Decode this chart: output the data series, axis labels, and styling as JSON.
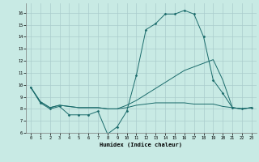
{
  "title": "",
  "xlabel": "Humidex (Indice chaleur)",
  "background_color": "#c8eae4",
  "grid_color": "#aacccc",
  "line_color": "#1a6b6b",
  "xlim": [
    -0.5,
    23.5
  ],
  "ylim": [
    6,
    16.8
  ],
  "yticks": [
    6,
    7,
    8,
    9,
    10,
    11,
    12,
    13,
    14,
    15,
    16
  ],
  "xticks": [
    0,
    1,
    2,
    3,
    4,
    5,
    6,
    7,
    8,
    9,
    10,
    11,
    12,
    13,
    14,
    15,
    16,
    17,
    18,
    19,
    20,
    21,
    22,
    23
  ],
  "series1_x": [
    0,
    1,
    2,
    3,
    4,
    5,
    6,
    7,
    8,
    9,
    10,
    11,
    12,
    13,
    14,
    15,
    16,
    17,
    18,
    19,
    20,
    21,
    22,
    23
  ],
  "series1_y": [
    9.8,
    8.5,
    8.0,
    8.2,
    7.5,
    7.5,
    7.5,
    7.8,
    5.9,
    6.5,
    7.8,
    10.8,
    14.6,
    15.1,
    15.9,
    15.9,
    16.2,
    15.9,
    14.0,
    10.4,
    9.3,
    8.1,
    8.0,
    8.1
  ],
  "series2_x": [
    0,
    1,
    2,
    3,
    4,
    5,
    6,
    7,
    8,
    9,
    10,
    11,
    12,
    13,
    14,
    15,
    16,
    17,
    18,
    19,
    20,
    21,
    22,
    23
  ],
  "series2_y": [
    9.8,
    8.6,
    8.1,
    8.3,
    8.2,
    8.1,
    8.1,
    8.1,
    8.0,
    8.0,
    8.3,
    8.7,
    9.2,
    9.7,
    10.2,
    10.7,
    11.2,
    11.5,
    11.8,
    12.1,
    10.4,
    8.1,
    8.0,
    8.1
  ],
  "series3_x": [
    0,
    1,
    2,
    3,
    4,
    5,
    6,
    7,
    8,
    9,
    10,
    11,
    12,
    13,
    14,
    15,
    16,
    17,
    18,
    19,
    20,
    21,
    22,
    23
  ],
  "series3_y": [
    9.8,
    8.6,
    8.1,
    8.3,
    8.2,
    8.1,
    8.1,
    8.1,
    8.0,
    8.0,
    8.1,
    8.3,
    8.4,
    8.5,
    8.5,
    8.5,
    8.5,
    8.4,
    8.4,
    8.4,
    8.2,
    8.1,
    8.0,
    8.1
  ]
}
